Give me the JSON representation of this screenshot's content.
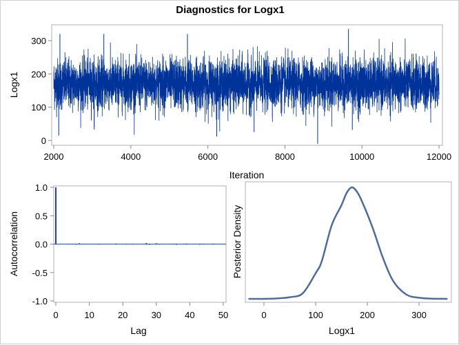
{
  "title": "Diagnostics for Logx1",
  "colors": {
    "trace": "#003399",
    "acf": "#1f3fae",
    "density": "#4d6b9e",
    "frame": "#b0b0b0"
  },
  "chart_data": [
    {
      "type": "line",
      "name": "trace",
      "xlabel": "Iteration",
      "ylabel": "Logx1",
      "xlim": [
        2000,
        12000
      ],
      "ylim": [
        -10,
        340
      ],
      "xticks": [
        "2000",
        "4000",
        "6000",
        "8000",
        "10000",
        "12000"
      ],
      "yticks": [
        "0",
        "100",
        "200",
        "300"
      ],
      "center": 170,
      "typical_band": [
        90,
        260
      ],
      "extremes": [
        {
          "x": 2130,
          "y": 15
        },
        {
          "x": 2160,
          "y": 320
        },
        {
          "x": 3050,
          "y": 33
        },
        {
          "x": 3300,
          "y": 320
        },
        {
          "x": 5470,
          "y": 320
        },
        {
          "x": 6230,
          "y": 12
        },
        {
          "x": 7200,
          "y": 25
        },
        {
          "x": 8850,
          "y": -10
        },
        {
          "x": 9650,
          "y": 335
        },
        {
          "x": 9750,
          "y": 32
        }
      ]
    },
    {
      "type": "bar",
      "name": "autocorrelation",
      "xlabel": "Lag",
      "ylabel": "Autocorrelation",
      "xlim": [
        0,
        50
      ],
      "ylim": [
        -1,
        1
      ],
      "xticks": [
        "0",
        "10",
        "20",
        "30",
        "40",
        "50"
      ],
      "yticks": [
        "-1.0",
        "-0.5",
        "0.0",
        "0.5",
        "1.0"
      ],
      "lags": [
        0,
        1,
        2,
        3,
        4,
        5,
        6,
        7,
        8,
        9,
        10,
        11,
        12,
        13,
        14,
        15,
        16,
        17,
        18,
        19,
        20,
        21,
        22,
        23,
        24,
        25,
        26,
        27,
        28,
        29,
        30,
        31,
        32,
        33,
        34,
        35,
        36,
        37,
        38,
        39,
        40,
        41,
        42,
        43,
        44,
        45,
        46,
        47,
        48,
        49,
        50
      ],
      "values": [
        1.0,
        0.0,
        0.0,
        0.0,
        0.003,
        -0.002,
        -0.01,
        0.015,
        0.002,
        0.0,
        0.0,
        0.0,
        -0.005,
        -0.008,
        0.0,
        0.0,
        0.0,
        0.0,
        0.01,
        0.0,
        0.0,
        0.006,
        0.0,
        -0.006,
        0.0,
        0.0,
        0.0,
        0.02,
        -0.012,
        0.0,
        0.015,
        0.006,
        0.0,
        0.0,
        0.0,
        0.004,
        -0.012,
        0.0,
        0.0,
        0.01,
        0.0,
        0.0,
        0.0,
        -0.01,
        0.006,
        0.0,
        0.0,
        0.008,
        0.0,
        0.0,
        0.0
      ]
    },
    {
      "type": "line",
      "name": "posterior-density",
      "xlabel": "Logx1",
      "ylabel": "Posterior Density",
      "xlim": [
        -30,
        360
      ],
      "xticks": [
        "0",
        "100",
        "200",
        "300"
      ],
      "x": [
        -30,
        0,
        25,
        50,
        75,
        100,
        112,
        131,
        150,
        160,
        170,
        180,
        190,
        210,
        230,
        250,
        275,
        300,
        325,
        355
      ],
      "density_relative": [
        0,
        0,
        0.004,
        0.015,
        0.05,
        0.23,
        0.34,
        0.66,
        0.84,
        0.95,
        1.0,
        0.96,
        0.87,
        0.64,
        0.37,
        0.16,
        0.04,
        0.01,
        0.002,
        0
      ]
    }
  ]
}
